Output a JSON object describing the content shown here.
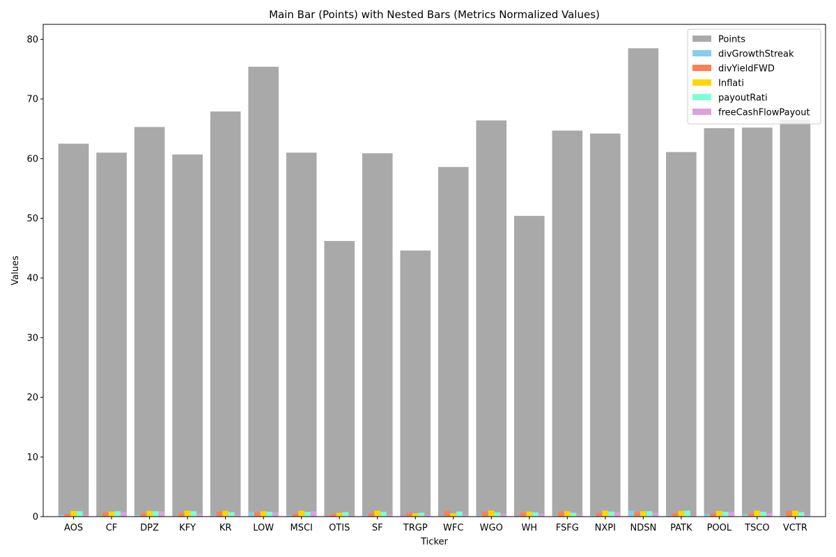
{
  "chart_data": {
    "type": "bar",
    "title": "Main Bar (Points) with Nested Bars (Metrics Normalized Values)",
    "xlabel": "Ticker",
    "ylabel": "Values",
    "ylim": [
      0,
      82.5
    ],
    "yticks": [
      0,
      10,
      20,
      30,
      40,
      50,
      60,
      70,
      80
    ],
    "legend_position": "top-right",
    "grid": false,
    "categories": [
      "AOS",
      "CF",
      "DPZ",
      "KFY",
      "KR",
      "LOW",
      "MSCI",
      "OTIS",
      "SF",
      "TRGP",
      "WFC",
      "WGO",
      "WH",
      "FSFG",
      "NXPI",
      "NDSN",
      "PATK",
      "POOL",
      "TSCO",
      "VCTR"
    ],
    "series": [
      {
        "name": "Points",
        "color": "#a9a9a9",
        "role": "main",
        "values": [
          62.5,
          61.0,
          65.3,
          60.7,
          67.9,
          75.4,
          61.0,
          46.2,
          60.9,
          44.6,
          58.6,
          66.4,
          50.4,
          64.7,
          64.2,
          78.5,
          61.1,
          65.1,
          65.2,
          66.5
        ]
      },
      {
        "name": "divGrowthStreak",
        "color": "#87ceeb",
        "role": "nested",
        "values": [
          0.35,
          0.15,
          0.3,
          0.15,
          0.25,
          0.8,
          0.3,
          0.1,
          0.25,
          0.1,
          0.1,
          0.2,
          0.1,
          0.2,
          0.25,
          1.0,
          0.2,
          0.4,
          0.4,
          0.2
        ]
      },
      {
        "name": "divYieldFWD",
        "color": "#ff7f50",
        "role": "nested",
        "values": [
          0.45,
          0.7,
          0.55,
          0.65,
          0.85,
          0.75,
          0.5,
          0.45,
          0.6,
          0.65,
          0.95,
          0.85,
          0.7,
          0.85,
          0.6,
          0.75,
          0.6,
          0.55,
          0.5,
          0.95
        ]
      },
      {
        "name": "Inflati",
        "color": "#ffd700",
        "role": "nested",
        "values": [
          0.95,
          0.85,
          0.95,
          1.0,
          0.95,
          0.9,
          1.0,
          0.65,
          1.0,
          0.55,
          0.55,
          1.0,
          0.85,
          0.9,
          1.0,
          0.9,
          0.95,
          0.95,
          1.0,
          1.0
        ]
      },
      {
        "name": "payoutRati",
        "color": "#7fffd4",
        "role": "nested",
        "values": [
          0.9,
          0.9,
          0.9,
          0.9,
          0.75,
          0.8,
          0.8,
          0.75,
          0.8,
          0.65,
          0.85,
          0.7,
          0.7,
          0.65,
          0.85,
          0.9,
          1.0,
          0.8,
          0.8,
          0.75
        ]
      },
      {
        "name": "freeCashFlowPayout",
        "color": "#dda0dd",
        "role": "nested",
        "values": [
          0.3,
          0.75,
          0.9,
          0.45,
          0.3,
          0.7,
          0.9,
          0.2,
          0.35,
          0.25,
          0.3,
          0.45,
          0.5,
          0.25,
          0.75,
          0.65,
          0.2,
          0.8,
          0.6,
          0.3
        ]
      }
    ]
  }
}
